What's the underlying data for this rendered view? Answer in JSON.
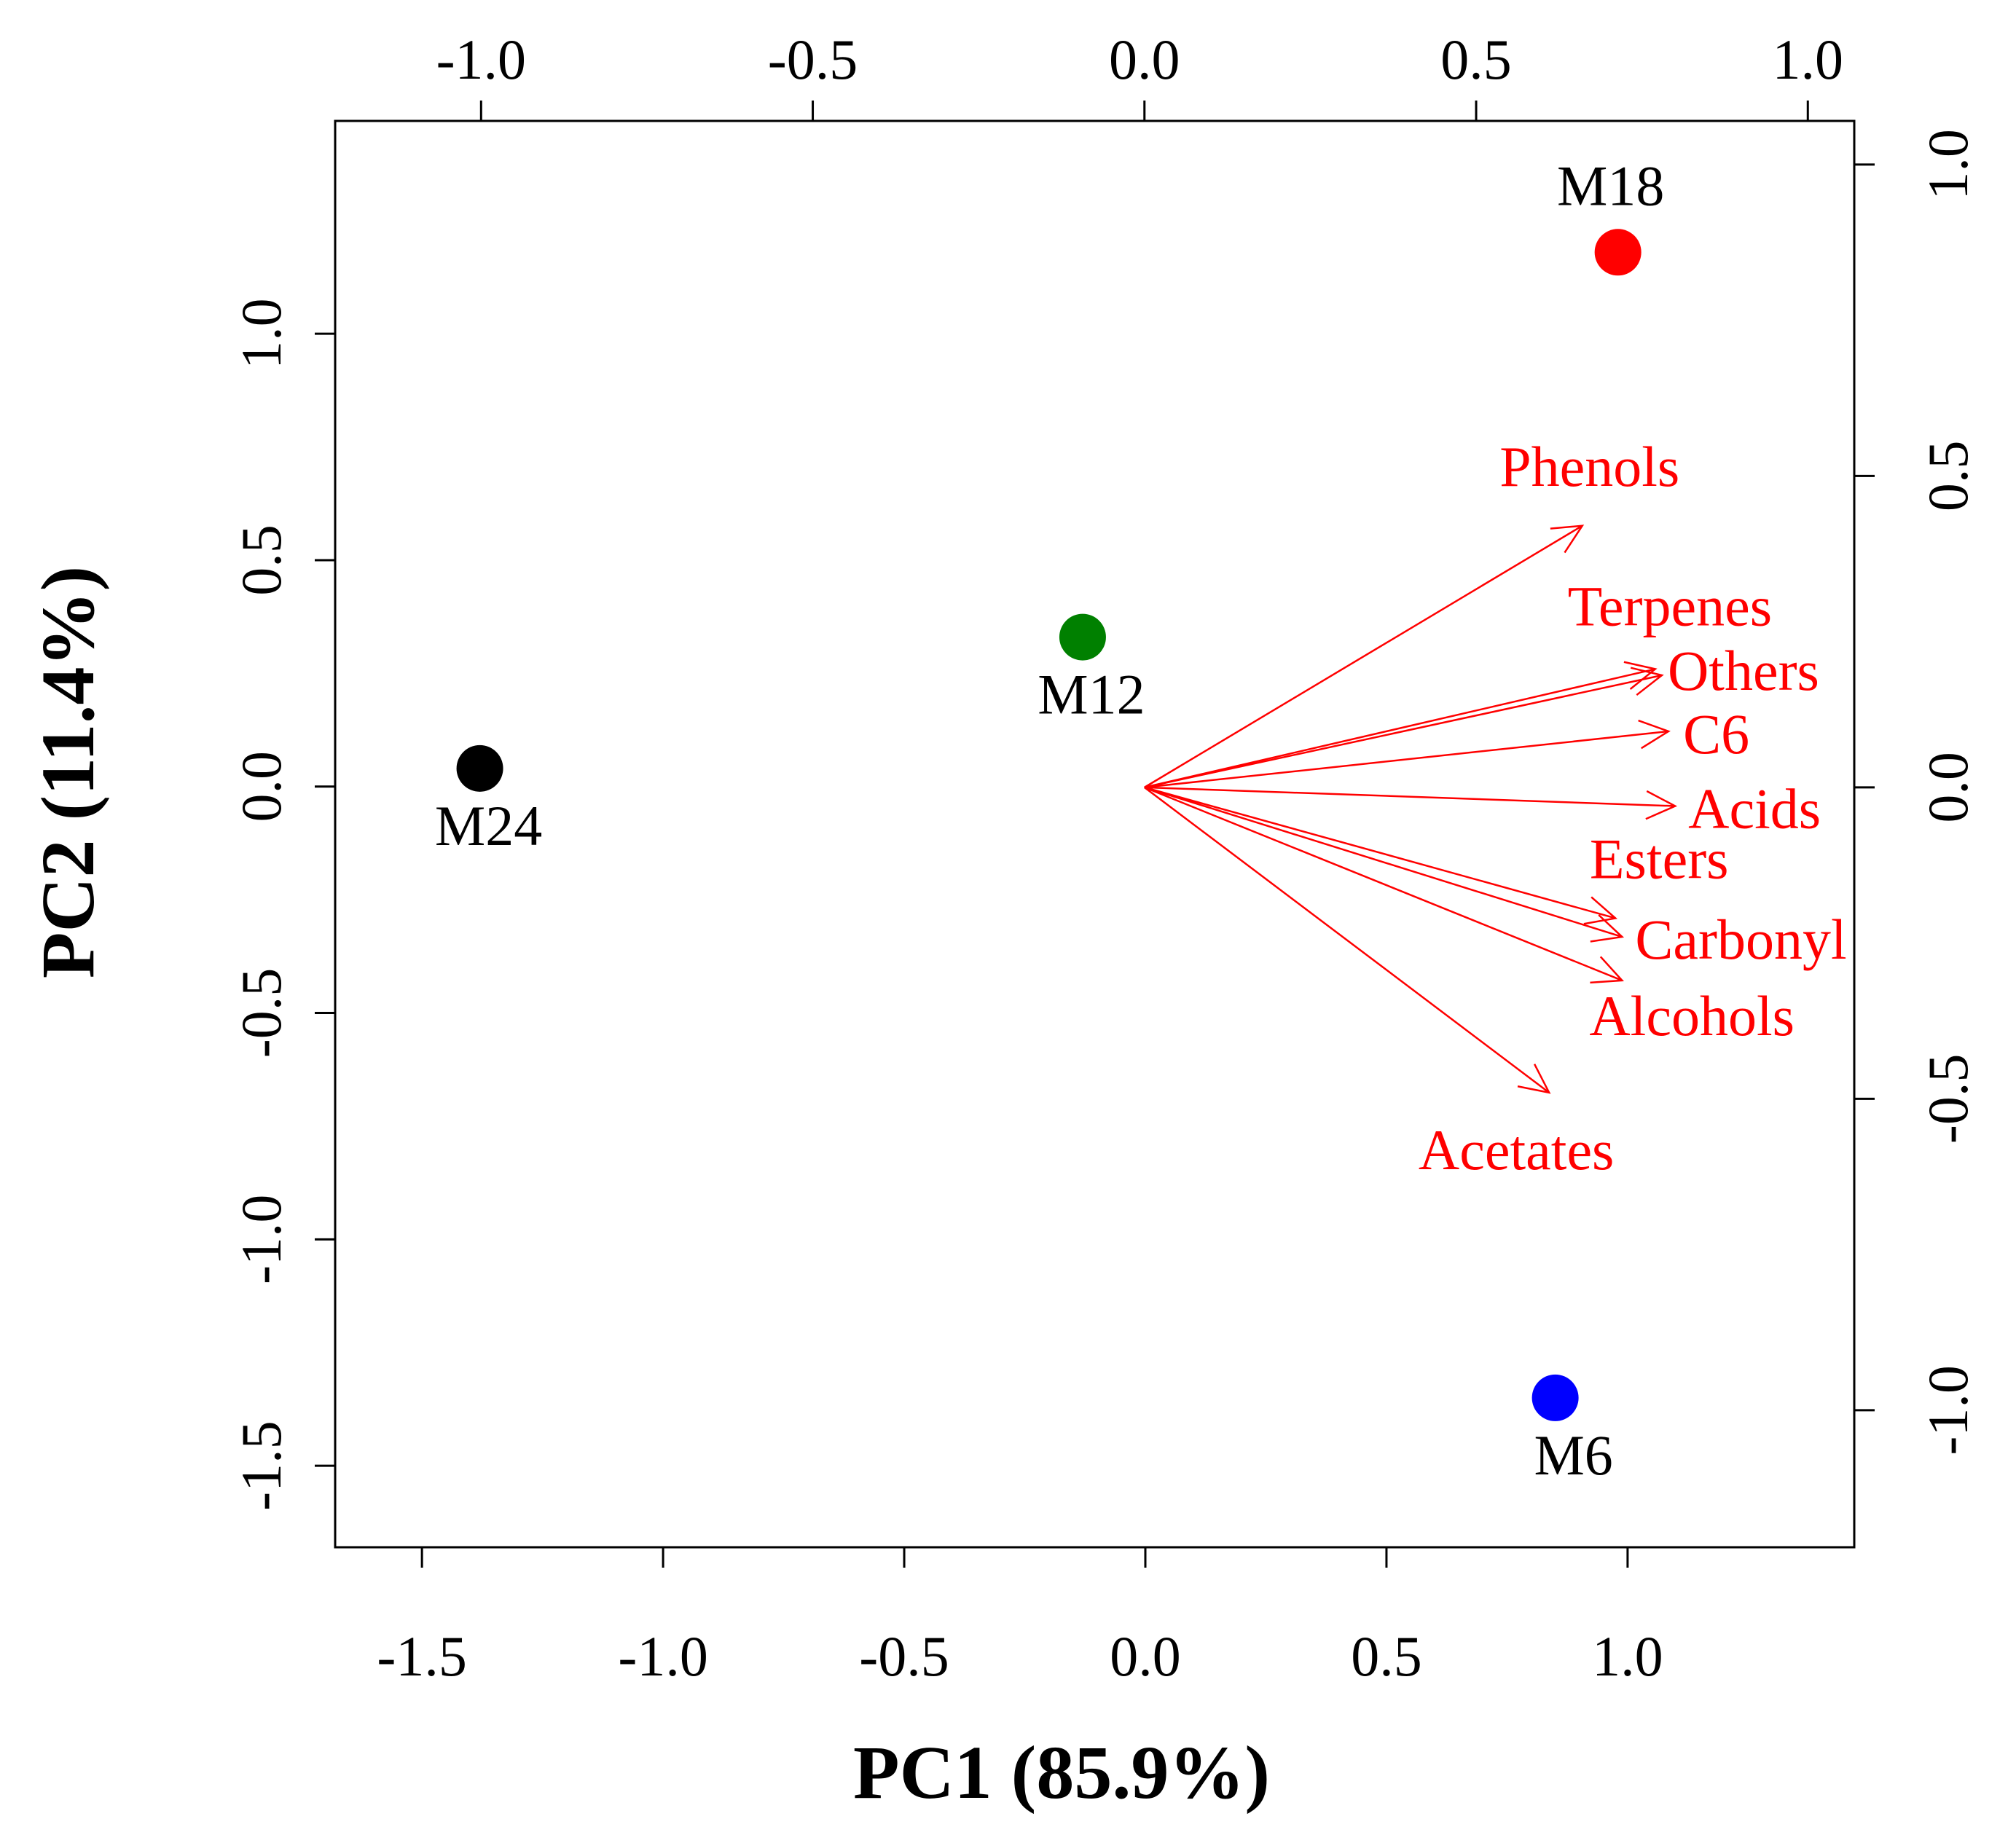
{
  "chart_data": {
    "type": "scatter",
    "subtype": "pca-biplot",
    "xlabel": "PC1 (85.9%)",
    "ylabel": "PC2 (11.4%)",
    "grid": false,
    "axes": {
      "bottom": {
        "ticks": [
          -1.5,
          -1.0,
          -0.5,
          0.0,
          0.5,
          1.0
        ],
        "labels": [
          "-1.5",
          "-1.0",
          "-0.5",
          "0.0",
          "0.5",
          "1.0"
        ],
        "range": [
          -1.68,
          1.47
        ]
      },
      "left": {
        "ticks": [
          -1.5,
          -1.0,
          -0.5,
          0.0,
          0.5,
          1.0
        ],
        "labels": [
          "-1.5",
          "-1.0",
          "-0.5",
          "0.0",
          "0.5",
          "1.0"
        ],
        "range": [
          -1.68,
          1.47
        ]
      },
      "top": {
        "ticks": [
          -1.0,
          -0.5,
          0.0,
          0.5,
          1.0
        ],
        "labels": [
          "-1.0",
          "-0.5",
          "0.0",
          "0.5",
          "1.0"
        ],
        "range": [
          -1.22,
          1.07
        ]
      },
      "right": {
        "ticks": [
          -1.0,
          -0.5,
          0.0,
          0.5,
          1.0
        ],
        "labels": [
          "-1.0",
          "-0.5",
          "0.0",
          "0.5",
          "1.0"
        ],
        "range": [
          -1.22,
          1.07
        ]
      }
    },
    "samples": [
      {
        "name": "M18",
        "x": 0.98,
        "y": 1.18,
        "color": "#ff0000",
        "label_pos": "above"
      },
      {
        "name": "M12",
        "x": -0.13,
        "y": 0.33,
        "color": "#008000",
        "label_pos": "below"
      },
      {
        "name": "M24",
        "x": -1.38,
        "y": 0.04,
        "color": "#000000",
        "label_pos": "below"
      },
      {
        "name": "M6",
        "x": 0.85,
        "y": -1.35,
        "color": "#0000ff",
        "label_pos": "below"
      }
    ],
    "loadings": [
      {
        "name": "Phenols",
        "x": 0.66,
        "y": 0.42
      },
      {
        "name": "Terpenes",
        "x": 0.77,
        "y": 0.19
      },
      {
        "name": "Others",
        "x": 0.78,
        "y": 0.18
      },
      {
        "name": "C6",
        "x": 0.79,
        "y": 0.09
      },
      {
        "name": "Acids",
        "x": 0.8,
        "y": -0.03
      },
      {
        "name": "Esters",
        "x": 0.71,
        "y": -0.21
      },
      {
        "name": "Carbonyl",
        "x": 0.72,
        "y": -0.24
      },
      {
        "name": "Alcohols",
        "x": 0.72,
        "y": -0.31
      },
      {
        "name": "Acetates",
        "x": 0.61,
        "y": -0.49
      }
    ],
    "loading_color": "#ff0000"
  }
}
